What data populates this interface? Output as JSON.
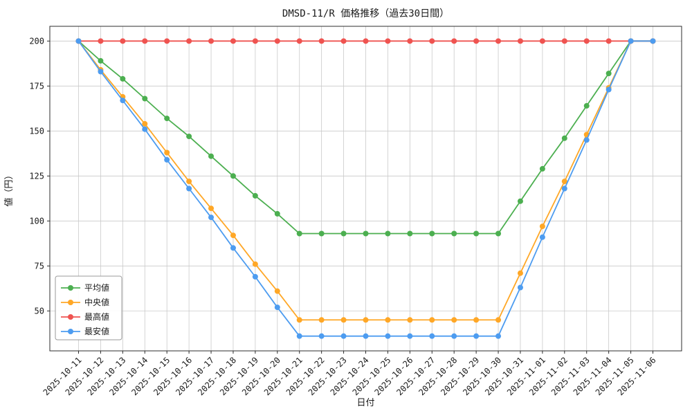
{
  "title": "DMSD-11/R 価格推移（過去30日間）",
  "chart_data": {
    "type": "line",
    "title": "DMSD-11/R 価格推移（過去30日間）",
    "xlabel": "日付",
    "ylabel": "値（円）",
    "grid": true,
    "legend_position": "lower-left",
    "marker": "circle",
    "ylim": [
      27.8,
      208.2
    ],
    "yticks": [
      50,
      75,
      100,
      125,
      150,
      175,
      200
    ],
    "x": [
      "2025-10-11",
      "2025-10-12",
      "2025-10-13",
      "2025-10-14",
      "2025-10-15",
      "2025-10-16",
      "2025-10-17",
      "2025-10-18",
      "2025-10-19",
      "2025-10-20",
      "2025-10-21",
      "2025-10-22",
      "2025-10-23",
      "2025-10-24",
      "2025-10-25",
      "2025-10-26",
      "2025-10-27",
      "2025-10-28",
      "2025-10-29",
      "2025-10-30",
      "2025-10-31",
      "2025-11-01",
      "2025-11-02",
      "2025-11-03",
      "2025-11-04",
      "2025-11-05",
      "2025-11-06"
    ],
    "series": [
      {
        "name": "平均値",
        "color": "#4caf50",
        "values": [
          200,
          189,
          179,
          168,
          157,
          147,
          136,
          125,
          114,
          104,
          93,
          93,
          93,
          93,
          93,
          93,
          93,
          93,
          93,
          93,
          111,
          129,
          146,
          164,
          182,
          200,
          200
        ]
      },
      {
        "name": "中央値",
        "color": "#ffa726",
        "values": [
          200,
          184,
          169,
          154,
          138,
          122,
          107,
          92,
          76,
          61,
          45,
          45,
          45,
          45,
          45,
          45,
          45,
          45,
          45,
          45,
          71,
          97,
          122,
          148,
          174,
          200,
          200
        ]
      },
      {
        "name": "最高値",
        "color": "#ef5350",
        "values": [
          200,
          200,
          200,
          200,
          200,
          200,
          200,
          200,
          200,
          200,
          200,
          200,
          200,
          200,
          200,
          200,
          200,
          200,
          200,
          200,
          200,
          200,
          200,
          200,
          200,
          200,
          200
        ]
      },
      {
        "name": "最安値",
        "color": "#4d9cf0",
        "values": [
          200,
          183,
          167,
          151,
          134,
          118,
          102,
          85,
          69,
          52,
          36,
          36,
          36,
          36,
          36,
          36,
          36,
          36,
          36,
          36,
          63,
          91,
          118,
          145,
          173,
          200,
          200
        ]
      }
    ]
  }
}
